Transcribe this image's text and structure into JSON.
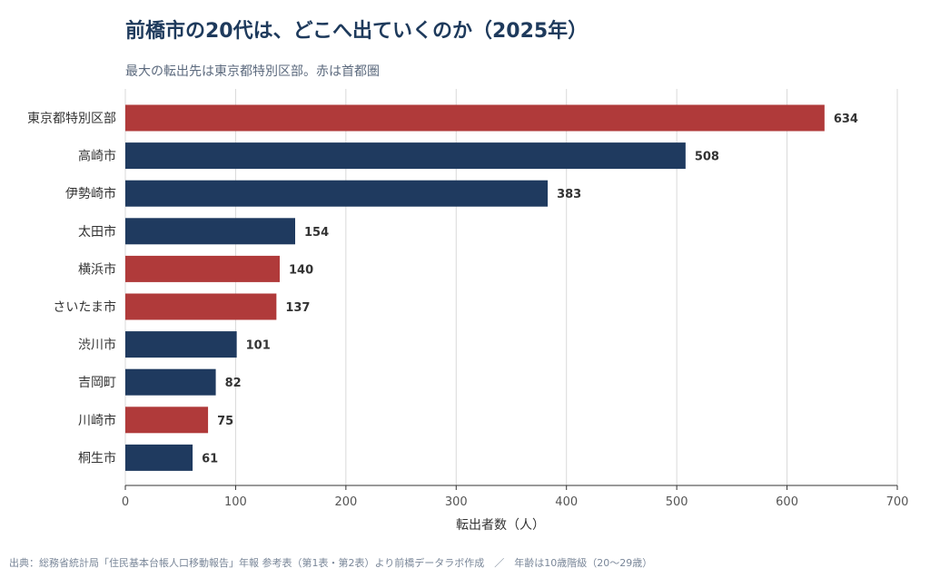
{
  "colors": {
    "metro": "#b03a3a",
    "other": "#1f3a5f",
    "grid": "#d9d9d9",
    "axis": "#333333"
  },
  "chart_data": {
    "type": "bar",
    "orientation": "horizontal",
    "title": "前橋市の20代は、どこへ出ていくのか（2025年）",
    "subtitle": "最大の転出先は東京都特別区部。赤は首都圏",
    "categories": [
      "東京都特別区部",
      "高崎市",
      "伊勢崎市",
      "太田市",
      "横浜市",
      "さいたま市",
      "渋川市",
      "吉岡町",
      "川崎市",
      "桐生市"
    ],
    "values": [
      634,
      508,
      383,
      154,
      140,
      137,
      101,
      82,
      75,
      61
    ],
    "metro": [
      true,
      false,
      false,
      false,
      true,
      true,
      false,
      false,
      true,
      false
    ],
    "xlabel": "転出者数（人）",
    "xlim": [
      0,
      700
    ],
    "xticks": [
      0,
      100,
      200,
      300,
      400,
      500,
      600,
      700
    ],
    "grid": true
  },
  "source": "出典：総務省統計局「住民基本台帳人口移動報告」年報 参考表（第1表・第2表）より前橋データラボ作成　／　年齢は10歳階級（20〜29歳）"
}
